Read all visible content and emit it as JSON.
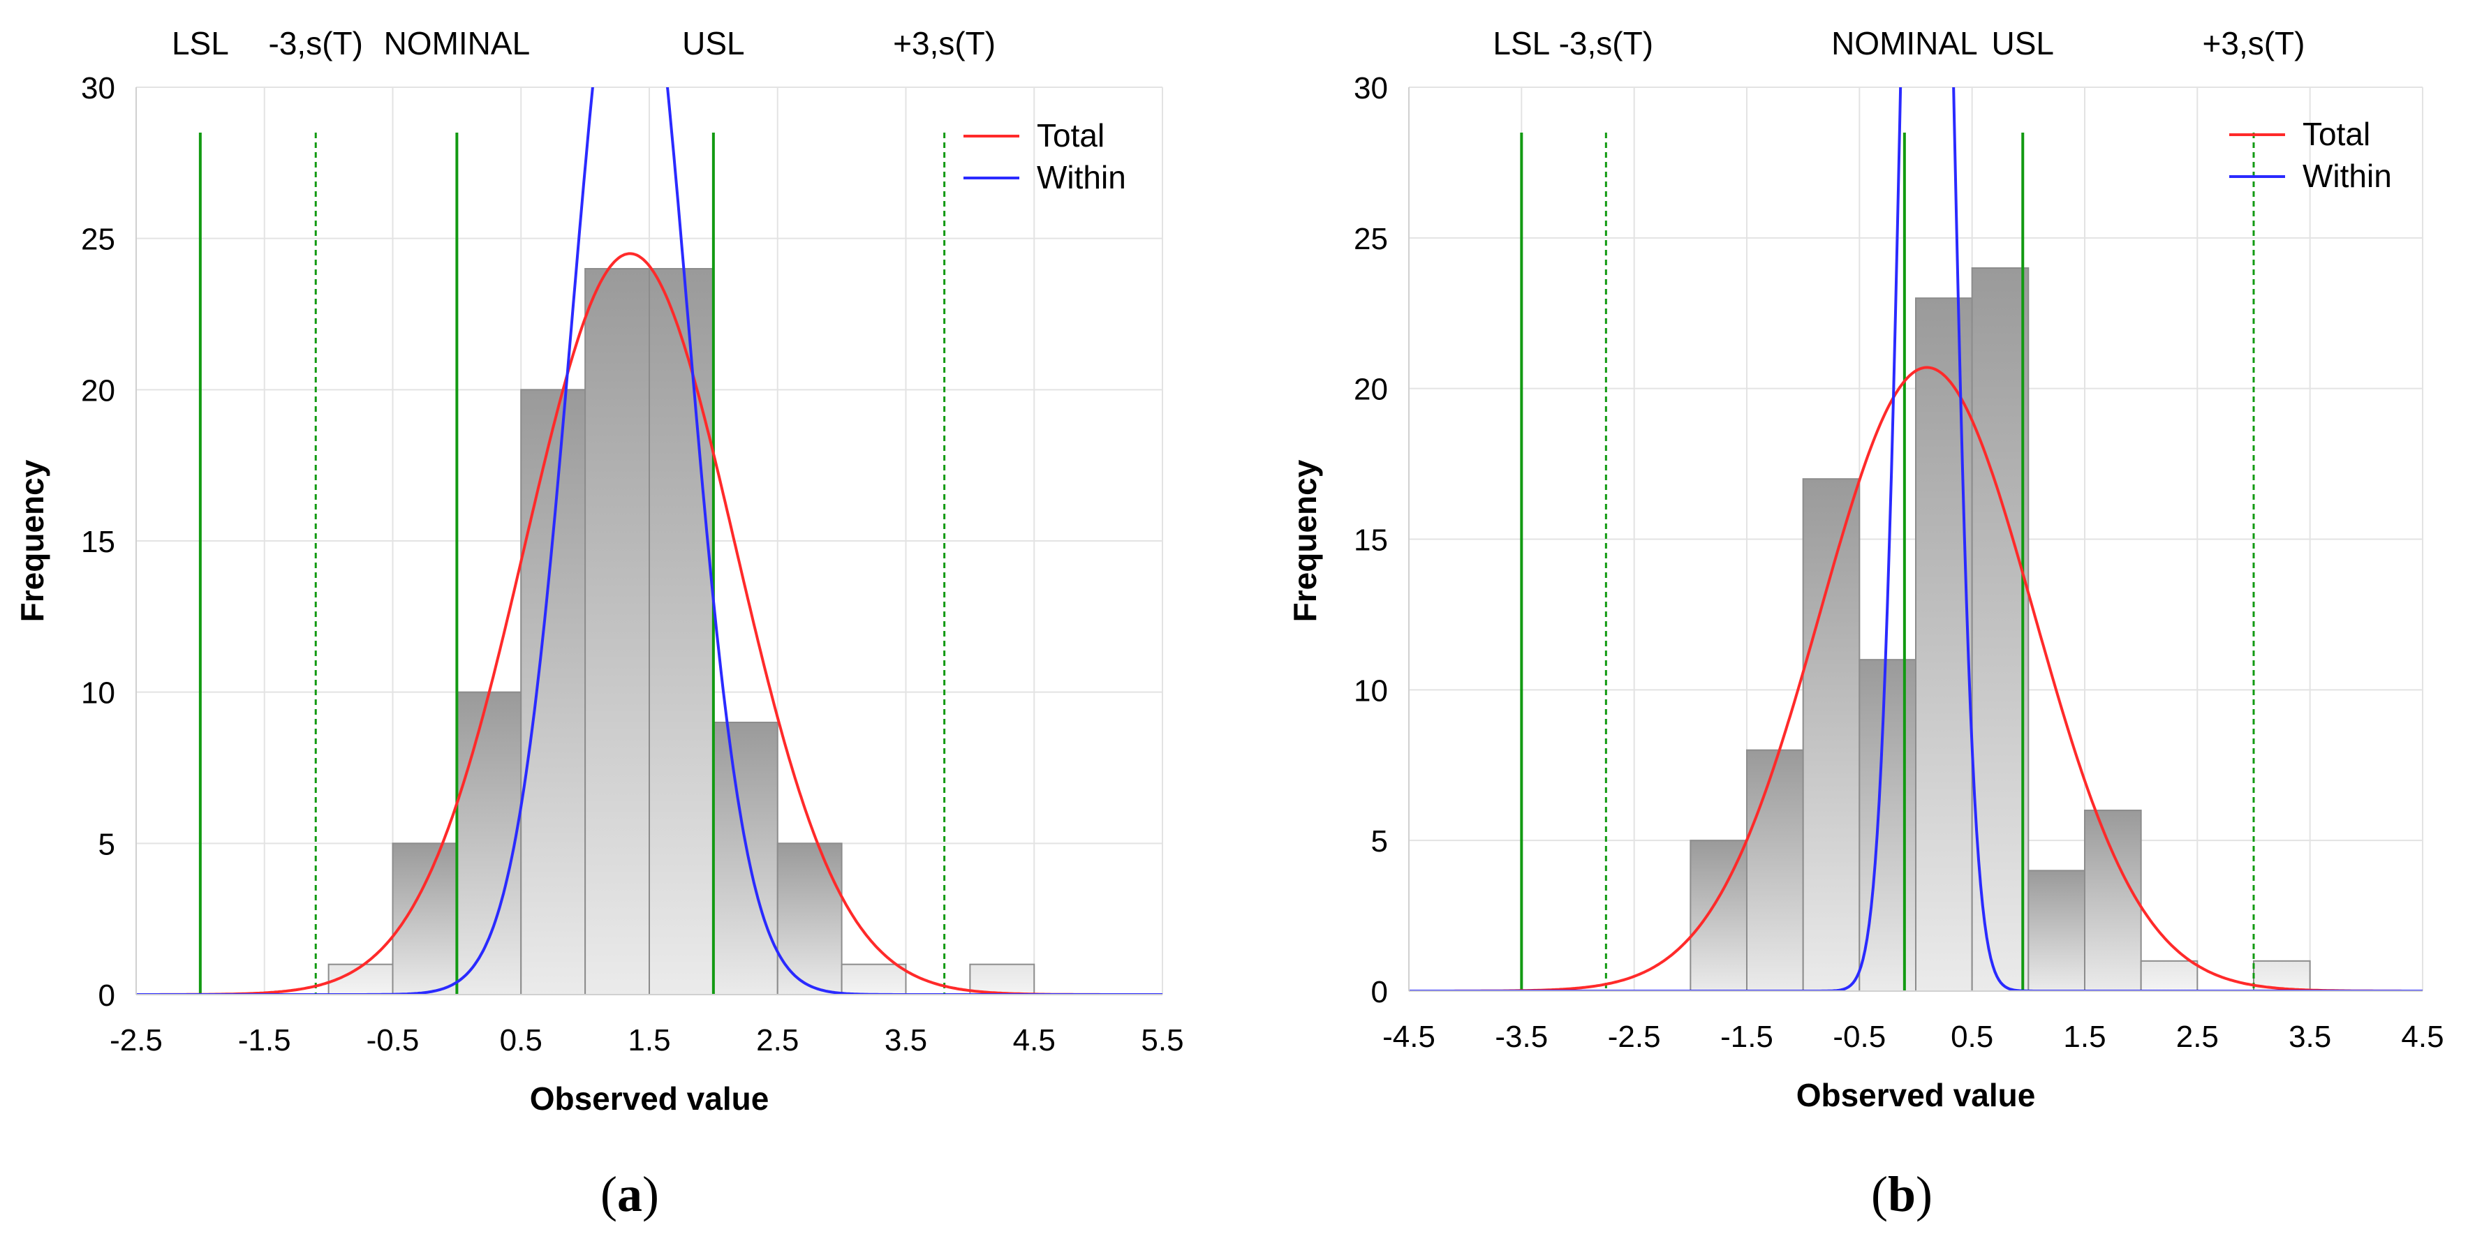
{
  "chart_data": [
    {
      "type": "bar",
      "panel_label_open": "(",
      "panel_label_letter": "a",
      "panel_label_close": ")",
      "xlabel": "Observed value",
      "ylabel": "Frequency",
      "xlim": [
        -2.5,
        5.5
      ],
      "ylim": [
        0,
        30
      ],
      "x_ticks": [
        -2.5,
        -1.5,
        -0.5,
        0.5,
        1.5,
        2.5,
        3.5,
        4.5,
        5.5
      ],
      "x_tick_labels": [
        "-2.5",
        "-1.5",
        "-0.5",
        "0.5",
        "1.5",
        "2.5",
        "3.5",
        "4.5",
        "5.5"
      ],
      "y_ticks": [
        0,
        5,
        10,
        15,
        20,
        25,
        30
      ],
      "y_tick_labels": [
        "0",
        "5",
        "10",
        "15",
        "20",
        "25",
        "30"
      ],
      "bins": [
        {
          "x0": -1.0,
          "x1": -0.5,
          "count": 1
        },
        {
          "x0": -0.5,
          "x1": 0.0,
          "count": 5
        },
        {
          "x0": 0.0,
          "x1": 0.5,
          "count": 10
        },
        {
          "x0": 0.5,
          "x1": 1.0,
          "count": 20
        },
        {
          "x0": 1.0,
          "x1": 1.5,
          "count": 24
        },
        {
          "x0": 1.5,
          "x1": 2.0,
          "count": 24
        },
        {
          "x0": 2.0,
          "x1": 2.5,
          "count": 9
        },
        {
          "x0": 2.5,
          "x1": 3.0,
          "count": 5
        },
        {
          "x0": 3.0,
          "x1": 3.5,
          "count": 1
        },
        {
          "x0": 4.0,
          "x1": 4.5,
          "count": 1
        }
      ],
      "spec_lines": [
        {
          "label": "LSL",
          "value": -2.0,
          "style": "solid"
        },
        {
          "label": "-3,s(T)",
          "value": -1.1,
          "style": "dashed"
        },
        {
          "label": "NOMINAL",
          "value": 0.0,
          "style": "solid"
        },
        {
          "label": "USL",
          "value": 2.0,
          "style": "solid"
        },
        {
          "label": "+3,s(T)",
          "value": 3.8,
          "style": "dashed"
        }
      ],
      "series": [
        {
          "name": "Total",
          "color": "#ff2a2a",
          "mean": 1.35,
          "peak": 24.5,
          "sigma": 0.82
        },
        {
          "name": "Within",
          "color": "#2a2aff",
          "mean": 1.35,
          "peak": 37.0,
          "sigma": 0.45
        }
      ]
    },
    {
      "type": "bar",
      "panel_label_open": "(",
      "panel_label_letter": "b",
      "panel_label_close": ")",
      "xlabel": "Observed value",
      "ylabel": "Frequency",
      "xlim": [
        -4.5,
        4.5
      ],
      "ylim": [
        0,
        30
      ],
      "x_ticks": [
        -4.5,
        -3.5,
        -2.5,
        -1.5,
        -0.5,
        0.5,
        1.5,
        2.5,
        3.5,
        4.5
      ],
      "x_tick_labels": [
        "-4.5",
        "-3.5",
        "-2.5",
        "-1.5",
        "-0.5",
        "0.5",
        "1.5",
        "2.5",
        "3.5",
        "4.5"
      ],
      "y_ticks": [
        0,
        5,
        10,
        15,
        20,
        25,
        30
      ],
      "y_tick_labels": [
        "0",
        "5",
        "10",
        "15",
        "20",
        "25",
        "30"
      ],
      "bins": [
        {
          "x0": -2.0,
          "x1": -1.5,
          "count": 5
        },
        {
          "x0": -1.5,
          "x1": -1.0,
          "count": 8
        },
        {
          "x0": -1.0,
          "x1": -0.5,
          "count": 17
        },
        {
          "x0": -0.5,
          "x1": 0.0,
          "count": 11
        },
        {
          "x0": 0.0,
          "x1": 0.5,
          "count": 23
        },
        {
          "x0": 0.5,
          "x1": 1.0,
          "count": 24
        },
        {
          "x0": 1.0,
          "x1": 1.5,
          "count": 4
        },
        {
          "x0": 1.5,
          "x1": 2.0,
          "count": 6
        },
        {
          "x0": 2.0,
          "x1": 2.5,
          "count": 1
        },
        {
          "x0": 3.0,
          "x1": 3.5,
          "count": 1
        }
      ],
      "spec_lines": [
        {
          "label": "LSL",
          "value": -3.5,
          "style": "solid"
        },
        {
          "label": "-3,s(T)",
          "value": -2.75,
          "style": "dashed"
        },
        {
          "label": "NOMINAL",
          "value": -0.1,
          "style": "solid"
        },
        {
          "label": "USL",
          "value": 0.95,
          "style": "solid"
        },
        {
          "label": "+3,s(T)",
          "value": 3.0,
          "style": "dashed"
        }
      ],
      "series": [
        {
          "name": "Total",
          "color": "#ff2a2a",
          "mean": 0.1,
          "peak": 20.7,
          "sigma": 0.95
        },
        {
          "name": "Within",
          "color": "#2a2aff",
          "mean": 0.1,
          "peak": 60.0,
          "sigma": 0.2
        }
      ]
    }
  ]
}
